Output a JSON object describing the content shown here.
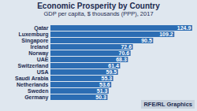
{
  "chart_data": {
    "type": "bar",
    "orientation": "horizontal",
    "title": "Economic Prosperity by Country",
    "subtitle": "GDP per capita, $ thousands (PPP), 2017",
    "caption": "RFE/RL Graphics",
    "categories": [
      "Qatar",
      "Luxemburg",
      "Singapore",
      "Ireland",
      "Norway",
      "UAE",
      "Switzerland",
      "USA",
      "Saudi Arabia",
      "Netherlands",
      "Sweden",
      "Germany"
    ],
    "values": [
      124.9,
      109.2,
      90.5,
      72.6,
      70.6,
      68.3,
      61.4,
      59.5,
      55.3,
      53.6,
      51.3,
      50.3
    ],
    "color": "#2c6db3",
    "xlim": [
      0,
      125
    ],
    "data_labels": true,
    "tick_labels": "y",
    "grid": false
  }
}
